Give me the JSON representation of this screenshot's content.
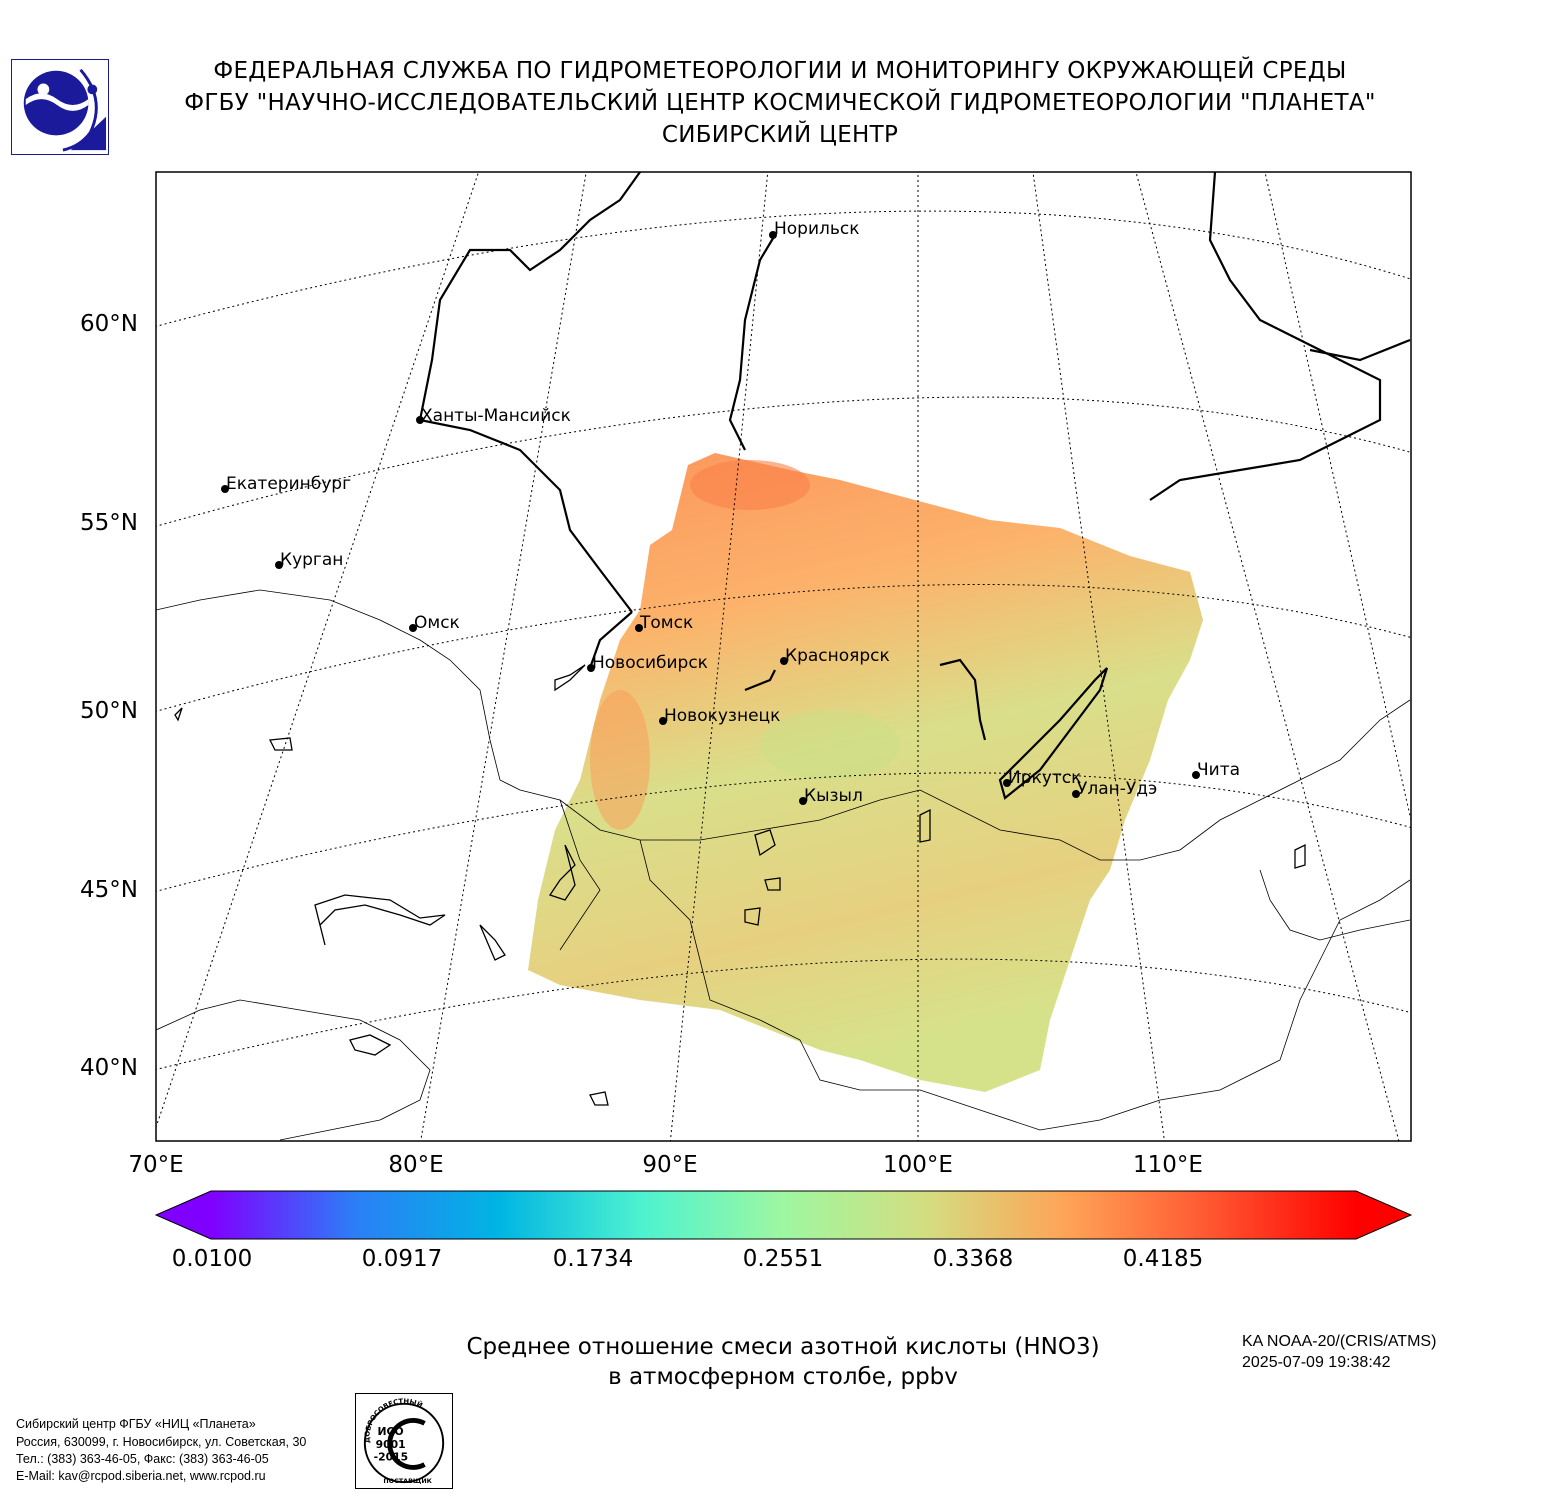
{
  "header": {
    "line1": "ФЕДЕРАЛЬНАЯ СЛУЖБА ПО ГИДРОМЕТЕОРОЛОГИИ И МОНИТОРИНГУ ОКРУЖАЮЩЕЙ СРЕДЫ",
    "line2": "ФГБУ \"НАУЧНО-ИССЛЕДОВАТЕЛЬСКИЙ ЦЕНТР КОСМИЧЕСКОЙ ГИДРОМЕТЕОРОЛОГИИ \"ПЛАНЕТА\"",
    "line3": "СИБИРСКИЙ ЦЕНТР"
  },
  "map": {
    "lat_labels": [
      "60°N",
      "55°N",
      "50°N",
      "45°N",
      "40°N"
    ],
    "lon_labels": [
      "70°E",
      "80°E",
      "90°E",
      "100°E",
      "110°E"
    ],
    "cities": [
      {
        "name": "Норильск"
      },
      {
        "name": "Ханты-Мансийск"
      },
      {
        "name": "Екатеринбург"
      },
      {
        "name": "Курган"
      },
      {
        "name": "Омск"
      },
      {
        "name": "Томск"
      },
      {
        "name": "Новосибирск"
      },
      {
        "name": "Красноярск"
      },
      {
        "name": "Новокузнецк"
      },
      {
        "name": "Кызыл"
      },
      {
        "name": "Иркутск"
      },
      {
        "name": "Улан-Удэ"
      },
      {
        "name": "Чита"
      }
    ]
  },
  "colorbar": {
    "ticks": [
      "0.0100",
      "0.0917",
      "0.1734",
      "0.2551",
      "0.3368",
      "0.4185"
    ],
    "colors": [
      "#7f00ff",
      "#2c7ef7",
      "#00b4e3",
      "#4df2d0",
      "#9ef7a1",
      "#d4dd80",
      "#ffa256",
      "#ff5530",
      "#ff0000"
    ]
  },
  "caption": {
    "line1": "Среднее отношение смеси азотной кислоты (HNO3)",
    "line2": "в атмосферном столбе, ppbv"
  },
  "satellite": {
    "instrument": "KA NOAA-20/(CRIS/ATMS)",
    "timestamp": "2025-07-09 19:38:42"
  },
  "footer": {
    "line1": "Сибирский центр ФГБУ «НИЦ «Планета»",
    "line2": "Россия, 630099, г. Новосибирск, ул. Советская, 30",
    "line3": "Тел.: (383) 363-46-05, Факс: (383) 363-46-05",
    "line4": "E-Mail: kav@rcpod.siberia.net, www.rcpod.ru"
  },
  "stamp": {
    "top": "ДОБРОСОВЕСТНЫЙ",
    "l1": "ИСО",
    "l2": "9001",
    "l3": "-2015",
    "bottom": "ПОСТАВЩИК"
  }
}
